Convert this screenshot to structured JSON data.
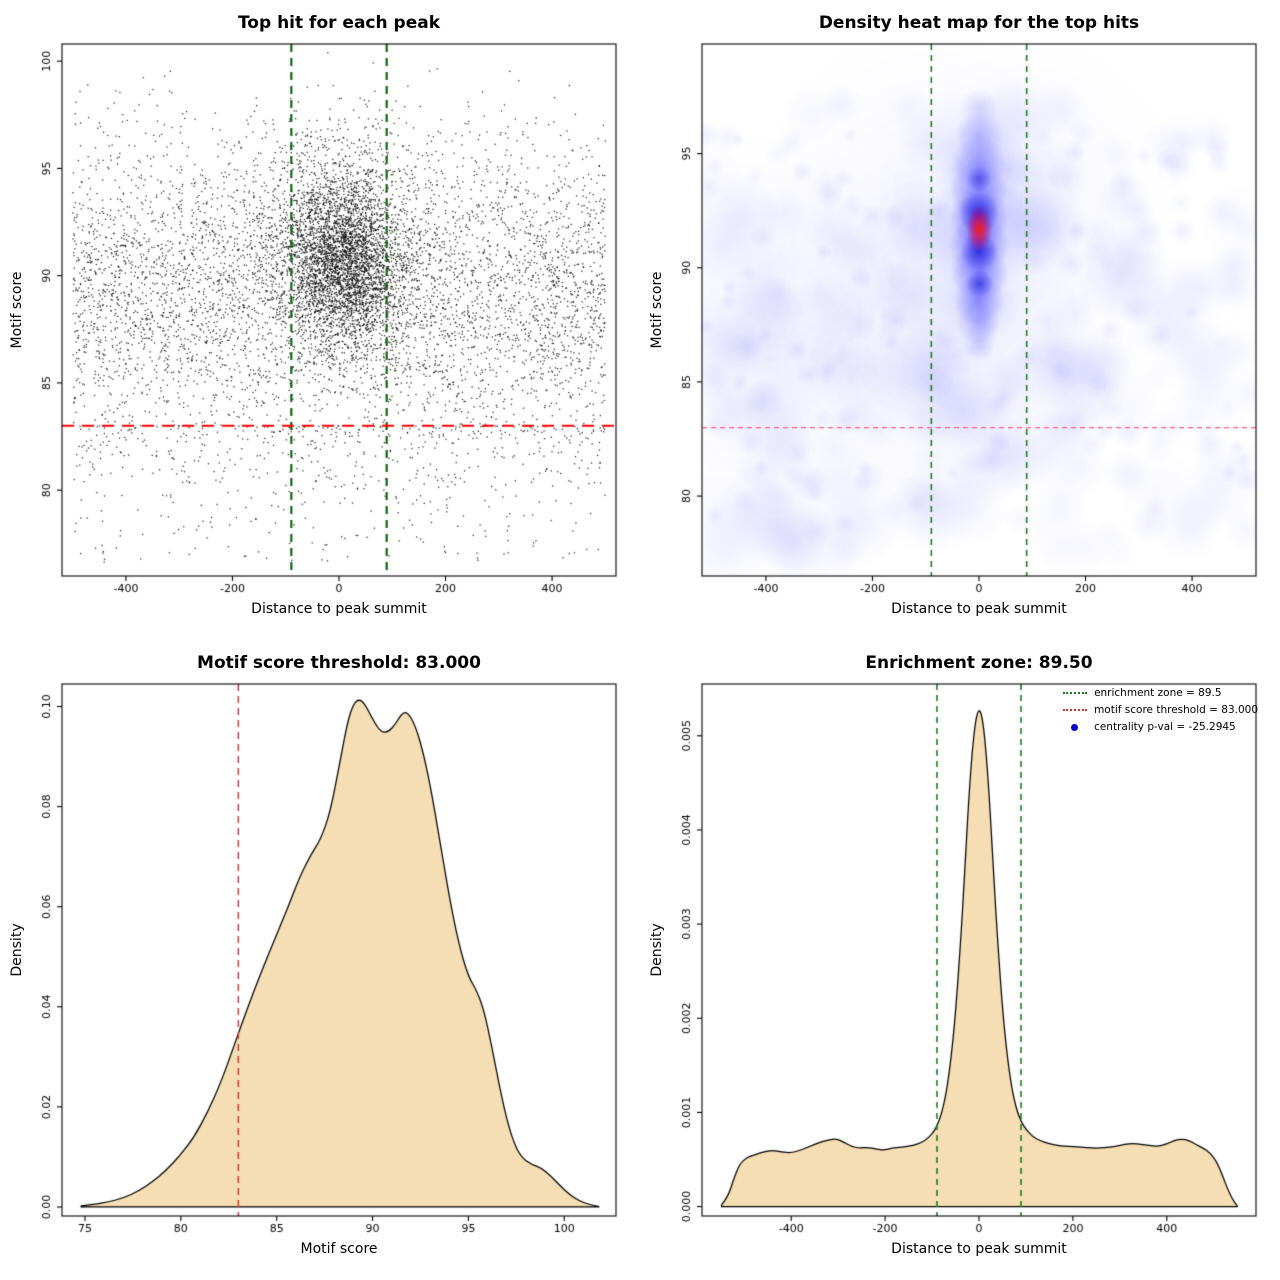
{
  "figure": {
    "background": "#ffffff"
  },
  "panels": {
    "scatter": {
      "title": "Top hit for each peak",
      "xlabel": "Distance to peak summit",
      "ylabel": "Motif score"
    },
    "heatmap": {
      "title": "Density heat map for the top hits",
      "xlabel": "Distance to peak summit",
      "ylabel": "Motif score"
    },
    "score_density": {
      "title": "Motif score threshold: 83.000",
      "xlabel": "Motif score",
      "ylabel": "Density"
    },
    "distance_density": {
      "title": "Enrichment zone: 89.50",
      "xlabel": "Distance to peak summit",
      "ylabel": "Density",
      "legend": [
        {
          "label": "enrichment zone = 89.5",
          "style": "dotted-line",
          "color": "#1e7a1e"
        },
        {
          "label": "motif score threshold = 83.000",
          "style": "dotted-line",
          "color": "#cc3333"
        },
        {
          "label": "centrality p-val = -25.2945",
          "style": "dot",
          "color": "#0000cc"
        }
      ]
    }
  },
  "values": {
    "motif_score_threshold": 83.0,
    "enrichment_zone_half_width": 89.5,
    "centrality_p_val": -25.2945
  },
  "chart_data": [
    {
      "id": "scatter",
      "type": "scatter",
      "title": "Top hit for each peak",
      "xlabel": "Distance to peak summit",
      "ylabel": "Motif score",
      "xlim": [
        -520,
        520
      ],
      "ylim": [
        76,
        100.8
      ],
      "xticks": [
        [
          -400,
          "-400"
        ],
        [
          -200,
          "-200"
        ],
        [
          0,
          "0"
        ],
        [
          200,
          "200"
        ],
        [
          400,
          "400"
        ]
      ],
      "yticks": [
        [
          80,
          "80"
        ],
        [
          85,
          "85"
        ],
        [
          90,
          "90"
        ],
        [
          95,
          "95"
        ],
        [
          100,
          "100"
        ]
      ],
      "point_color": "rgba(0,0,0,0.88)",
      "vlines": [
        {
          "x": -89.5,
          "color": "#136413",
          "width": 2.2,
          "dash": [
            8,
            6
          ]
        },
        {
          "x": 89.5,
          "color": "#136413",
          "width": 2.2,
          "dash": [
            8,
            6
          ]
        }
      ],
      "hlines": [
        {
          "y": 83,
          "color": "#ff0000",
          "width": 2,
          "dash": [
            12,
            8
          ]
        }
      ],
      "model": {
        "seed": 42,
        "background": {
          "n": 5200,
          "x_min": -500,
          "x_max": 500,
          "y_mean": 89.3,
          "y_sd": 3.6
        },
        "low_tail": {
          "n": 420,
          "y_top": 83,
          "depth": 6.3
        },
        "clusters": [
          {
            "n": 2900,
            "x_mean": 8,
            "x_sd": 58,
            "y_mean": 90.5,
            "y_sd": 1.9
          },
          {
            "n": 950,
            "x_mean": 0,
            "x_sd": 80,
            "y_mean": 92.3,
            "y_sd": 2.6
          }
        ]
      }
    },
    {
      "id": "heatmap",
      "type": "heatmap",
      "title": "Density heat map for the top hits",
      "xlabel": "Distance to peak summit",
      "ylabel": "Motif score",
      "xlim": [
        -520,
        520
      ],
      "ylim": [
        76.5,
        99.8
      ],
      "xticks": [
        [
          -400,
          "-400"
        ],
        [
          -200,
          "-200"
        ],
        [
          0,
          "0"
        ],
        [
          200,
          "200"
        ],
        [
          400,
          "400"
        ]
      ],
      "yticks": [
        [
          80,
          "80"
        ],
        [
          85,
          "85"
        ],
        [
          90,
          "90"
        ],
        [
          95,
          "95"
        ]
      ],
      "vlines": [
        {
          "x": -89.5,
          "color": "#1e7a1e",
          "width": 1.6,
          "dash": [
            6,
            5
          ]
        },
        {
          "x": 89.5,
          "color": "#1e7a1e",
          "width": 1.6,
          "dash": [
            6,
            5
          ]
        }
      ],
      "hlines": [
        {
          "y": 83,
          "color": "#ff5d7e",
          "width": 1.4,
          "dash": [
            5,
            4
          ]
        }
      ],
      "heat": {
        "seed": 11,
        "wash": {
          "n": 9,
          "r_min": 110,
          "r_max": 190,
          "alpha": 0.05,
          "color": "140,140,255",
          "y_min": 79,
          "y_max": 96
        },
        "background_blobs": {
          "n": 170,
          "y_min": 77.5,
          "y_max": 97.5,
          "r_min": 18,
          "r_max": 48,
          "alpha_min": 0.03,
          "alpha_max": 0.08,
          "color": "80,80,255"
        },
        "texture_blobs": {
          "n": 120,
          "y_min": 78,
          "y_max": 96,
          "r_min": 8,
          "r_max": 18,
          "alpha_min": 0.04,
          "alpha_max": 0.09,
          "color": "60,60,255"
        },
        "halo": [
          {
            "x": 0,
            "y": 91.5,
            "r": 60,
            "a": 0.2
          },
          {
            "x": 0,
            "y": 94.5,
            "r": 48,
            "a": 0.16
          },
          {
            "x": 0,
            "y": 88.5,
            "r": 42,
            "a": 0.14
          }
        ],
        "column_color": "40,40,255",
        "column": [
          {
            "x": 0,
            "y": 97,
            "r": 20,
            "a": 0.14
          },
          {
            "x": 0,
            "y": 95.8,
            "r": 24,
            "a": 0.24
          },
          {
            "x": 0,
            "y": 94.6,
            "r": 27,
            "a": 0.34
          },
          {
            "x": -1,
            "y": 93.4,
            "r": 29,
            "a": 0.44
          },
          {
            "x": 0,
            "y": 92.2,
            "r": 30,
            "a": 0.52
          },
          {
            "x": 0,
            "y": 91,
            "r": 30,
            "a": 0.54
          },
          {
            "x": 1,
            "y": 89.8,
            "r": 29,
            "a": 0.5
          },
          {
            "x": 0,
            "y": 88.6,
            "r": 26,
            "a": 0.42
          },
          {
            "x": -1,
            "y": 87.6,
            "r": 22,
            "a": 0.28
          },
          {
            "x": 0,
            "y": 86.7,
            "r": 18,
            "a": 0.16
          }
        ],
        "dark_color": "0,0,210",
        "dark": [
          {
            "x": 0,
            "y": 92.4,
            "r": 21,
            "a": 0.6
          },
          {
            "x": 0,
            "y": 90.7,
            "r": 19,
            "a": 0.6
          },
          {
            "x": 1,
            "y": 89.3,
            "r": 14,
            "a": 0.5
          },
          {
            "x": 0,
            "y": 93.9,
            "r": 13,
            "a": 0.42
          }
        ],
        "core": {
          "x": 0.5,
          "y": 91.7,
          "r": 13,
          "stretch": 1.8
        }
      }
    },
    {
      "id": "score_density",
      "type": "area",
      "title": "Motif score threshold: 83.000",
      "xlabel": "Motif score",
      "ylabel": "Density",
      "xlim": [
        73.8,
        102.7
      ],
      "ylim": [
        -0.0018,
        0.1045
      ],
      "xticks": [
        [
          75,
          "75"
        ],
        [
          80,
          "80"
        ],
        [
          85,
          "85"
        ],
        [
          90,
          "90"
        ],
        [
          95,
          "95"
        ],
        [
          100,
          "100"
        ]
      ],
      "yticks": [
        [
          0,
          "0.00"
        ],
        [
          0.02,
          "0.02"
        ],
        [
          0.04,
          "0.04"
        ],
        [
          0.06,
          "0.06"
        ],
        [
          0.08,
          "0.08"
        ],
        [
          0.1,
          "0.10"
        ]
      ],
      "fill": "#f5deb3",
      "vlines": [
        {
          "x": 83,
          "color": "#cc4444",
          "width": 1.6,
          "dash": [
            7,
            5
          ]
        }
      ],
      "curve": [
        [
          74.8,
          0.0002
        ],
        [
          75.5,
          0.0005
        ],
        [
          76.2,
          0.001
        ],
        [
          77,
          0.0018
        ],
        [
          77.8,
          0.0032
        ],
        [
          78.5,
          0.005
        ],
        [
          79.2,
          0.0072
        ],
        [
          80,
          0.0105
        ],
        [
          80.7,
          0.014
        ],
        [
          81.4,
          0.019
        ],
        [
          82.1,
          0.025
        ],
        [
          82.8,
          0.0325
        ],
        [
          83.5,
          0.04
        ],
        [
          84.2,
          0.047
        ],
        [
          85,
          0.0545
        ],
        [
          85.6,
          0.06
        ],
        [
          86.2,
          0.066
        ],
        [
          86.8,
          0.0705
        ],
        [
          87.3,
          0.0735
        ],
        [
          87.8,
          0.079
        ],
        [
          88.3,
          0.089
        ],
        [
          88.7,
          0.097
        ],
        [
          89,
          0.1005
        ],
        [
          89.3,
          0.1015
        ],
        [
          89.6,
          0.1005
        ],
        [
          90,
          0.0975
        ],
        [
          90.4,
          0.095
        ],
        [
          90.8,
          0.0948
        ],
        [
          91.2,
          0.0965
        ],
        [
          91.5,
          0.0985
        ],
        [
          91.8,
          0.099
        ],
        [
          92.2,
          0.0965
        ],
        [
          92.6,
          0.0915
        ],
        [
          93,
          0.0845
        ],
        [
          93.5,
          0.0735
        ],
        [
          94,
          0.062
        ],
        [
          94.5,
          0.0525
        ],
        [
          95,
          0.046
        ],
        [
          95.4,
          0.0435
        ],
        [
          95.8,
          0.0395
        ],
        [
          96.2,
          0.0325
        ],
        [
          96.6,
          0.0245
        ],
        [
          97,
          0.0175
        ],
        [
          97.4,
          0.0125
        ],
        [
          97.8,
          0.0098
        ],
        [
          98.3,
          0.0085
        ],
        [
          98.8,
          0.0078
        ],
        [
          99.3,
          0.0062
        ],
        [
          99.8,
          0.0042
        ],
        [
          100.3,
          0.0024
        ],
        [
          100.8,
          0.0012
        ],
        [
          101.3,
          0.0005
        ],
        [
          101.8,
          0.0001
        ]
      ]
    },
    {
      "id": "distance_density",
      "type": "area",
      "title": "Enrichment zone: 89.50",
      "xlabel": "Distance to peak summit",
      "ylabel": "Density",
      "xlim": [
        -590,
        590
      ],
      "ylim": [
        -0.0001,
        0.00555
      ],
      "xticks": [
        [
          -400,
          "-400"
        ],
        [
          -200,
          "-200"
        ],
        [
          0,
          "0"
        ],
        [
          200,
          "200"
        ],
        [
          400,
          "400"
        ]
      ],
      "yticks": [
        [
          0,
          "0.000"
        ],
        [
          0.001,
          "0.001"
        ],
        [
          0.002,
          "0.002"
        ],
        [
          0.003,
          "0.003"
        ],
        [
          0.004,
          "0.004"
        ],
        [
          0.005,
          "0.005"
        ]
      ],
      "fill": "#f5deb3",
      "vlines": [
        {
          "x": -89.5,
          "color": "#1e7a1e",
          "width": 1.6,
          "dash": [
            6,
            5
          ]
        },
        {
          "x": 89.5,
          "color": "#1e7a1e",
          "width": 1.6,
          "dash": [
            6,
            5
          ]
        }
      ],
      "curve": [
        [
          -548,
          2e-05
        ],
        [
          -535,
          0.0001
        ],
        [
          -522,
          0.0003
        ],
        [
          -510,
          0.00045
        ],
        [
          -495,
          0.00052
        ],
        [
          -478,
          0.00055
        ],
        [
          -460,
          0.00058
        ],
        [
          -440,
          0.0006
        ],
        [
          -420,
          0.00058
        ],
        [
          -400,
          0.00057
        ],
        [
          -380,
          0.0006
        ],
        [
          -360,
          0.00064
        ],
        [
          -340,
          0.00068
        ],
        [
          -320,
          0.00071
        ],
        [
          -305,
          0.00072
        ],
        [
          -290,
          0.00069
        ],
        [
          -272,
          0.00064
        ],
        [
          -255,
          0.00062
        ],
        [
          -238,
          0.00063
        ],
        [
          -220,
          0.00061
        ],
        [
          -202,
          0.0006
        ],
        [
          -185,
          0.00062
        ],
        [
          -168,
          0.00063
        ],
        [
          -150,
          0.00064
        ],
        [
          -132,
          0.00066
        ],
        [
          -115,
          0.0007
        ],
        [
          -100,
          0.00077
        ],
        [
          -90,
          0.00085
        ],
        [
          -80,
          0.00098
        ],
        [
          -70,
          0.0012
        ],
        [
          -60,
          0.00155
        ],
        [
          -50,
          0.00205
        ],
        [
          -40,
          0.00275
        ],
        [
          -32,
          0.0034
        ],
        [
          -24,
          0.00415
        ],
        [
          -16,
          0.00475
        ],
        [
          -8,
          0.00515
        ],
        [
          0,
          0.0053
        ],
        [
          8,
          0.00518
        ],
        [
          16,
          0.00478
        ],
        [
          24,
          0.00418
        ],
        [
          32,
          0.00345
        ],
        [
          40,
          0.0028
        ],
        [
          50,
          0.0021
        ],
        [
          60,
          0.0016
        ],
        [
          70,
          0.00125
        ],
        [
          80,
          0.00103
        ],
        [
          90,
          0.0009
        ],
        [
          100,
          0.00082
        ],
        [
          115,
          0.00074
        ],
        [
          130,
          0.0007
        ],
        [
          148,
          0.00067
        ],
        [
          165,
          0.00065
        ],
        [
          182,
          0.00064
        ],
        [
          200,
          0.00064
        ],
        [
          220,
          0.00063
        ],
        [
          240,
          0.00062
        ],
        [
          258,
          0.00062
        ],
        [
          275,
          0.00063
        ],
        [
          292,
          0.00064
        ],
        [
          310,
          0.00066
        ],
        [
          328,
          0.00067
        ],
        [
          345,
          0.00066
        ],
        [
          362,
          0.00065
        ],
        [
          380,
          0.00064
        ],
        [
          398,
          0.00066
        ],
        [
          415,
          0.0007
        ],
        [
          432,
          0.00072
        ],
        [
          448,
          0.0007
        ],
        [
          462,
          0.00066
        ],
        [
          478,
          0.00062
        ],
        [
          492,
          0.00057
        ],
        [
          506,
          0.00048
        ],
        [
          518,
          0.00034
        ],
        [
          530,
          0.00018
        ],
        [
          542,
          6e-05
        ],
        [
          550,
          1e-05
        ]
      ]
    }
  ]
}
